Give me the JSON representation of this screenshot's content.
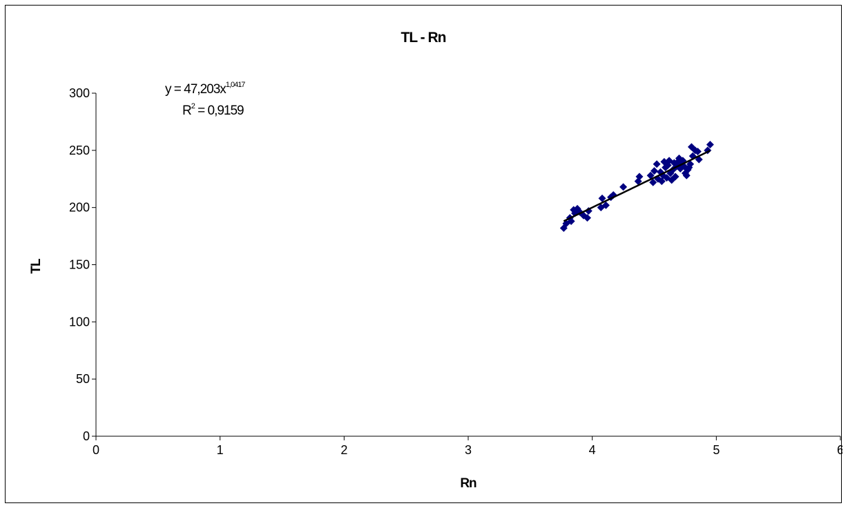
{
  "chart_data": {
    "type": "scatter",
    "title": "TL - Rn",
    "xlabel": "Rn",
    "ylabel": "TL",
    "xlim": [
      0,
      6
    ],
    "ylim": [
      0,
      300
    ],
    "xticks": [
      "0",
      "1",
      "2",
      "3",
      "4",
      "5",
      "6"
    ],
    "yticks": [
      "0",
      "50",
      "100",
      "150",
      "200",
      "250",
      "300"
    ],
    "grid": false,
    "legend": "none",
    "marker_color": "#000080",
    "trendline_color": "#000000",
    "trendline": {
      "type": "power",
      "coefficient": 47.203,
      "exponent": 1.0417,
      "x_range": [
        3.77,
        4.95
      ],
      "equation_text": {
        "prefix": "y = 47,203x",
        "exponent": "1,0417",
        "r2_base": "R",
        "r2_power": "2",
        "r2_value": " = 0,9159"
      }
    },
    "series": [
      {
        "points": [
          [
            3.77,
            182
          ],
          [
            3.79,
            186
          ],
          [
            3.82,
            191
          ],
          [
            3.83,
            188
          ],
          [
            3.85,
            198
          ],
          [
            3.86,
            195
          ],
          [
            3.88,
            199
          ],
          [
            3.9,
            196
          ],
          [
            3.93,
            193
          ],
          [
            3.96,
            191
          ],
          [
            3.97,
            197
          ],
          [
            4.07,
            200
          ],
          [
            4.08,
            208
          ],
          [
            4.11,
            202
          ],
          [
            4.15,
            209
          ],
          [
            4.17,
            211
          ],
          [
            4.25,
            218
          ],
          [
            4.37,
            223
          ],
          [
            4.38,
            227
          ],
          [
            4.47,
            228
          ],
          [
            4.49,
            222
          ],
          [
            4.5,
            232
          ],
          [
            4.52,
            238
          ],
          [
            4.53,
            225
          ],
          [
            4.55,
            231
          ],
          [
            4.56,
            223
          ],
          [
            4.57,
            228
          ],
          [
            4.58,
            240
          ],
          [
            4.59,
            235
          ],
          [
            4.6,
            226
          ],
          [
            4.61,
            237
          ],
          [
            4.62,
            241
          ],
          [
            4.63,
            230
          ],
          [
            4.64,
            224
          ],
          [
            4.65,
            233
          ],
          [
            4.66,
            239
          ],
          [
            4.67,
            227
          ],
          [
            4.68,
            236
          ],
          [
            4.69,
            240
          ],
          [
            4.7,
            243
          ],
          [
            4.71,
            234
          ],
          [
            4.72,
            238
          ],
          [
            4.73,
            241
          ],
          [
            4.74,
            236
          ],
          [
            4.75,
            230
          ],
          [
            4.76,
            228
          ],
          [
            4.77,
            233
          ],
          [
            4.78,
            235
          ],
          [
            4.79,
            238
          ],
          [
            4.8,
            253
          ],
          [
            4.81,
            245
          ],
          [
            4.83,
            250
          ],
          [
            4.85,
            249
          ],
          [
            4.86,
            242
          ],
          [
            4.93,
            250
          ],
          [
            4.95,
            255
          ]
        ]
      }
    ]
  }
}
